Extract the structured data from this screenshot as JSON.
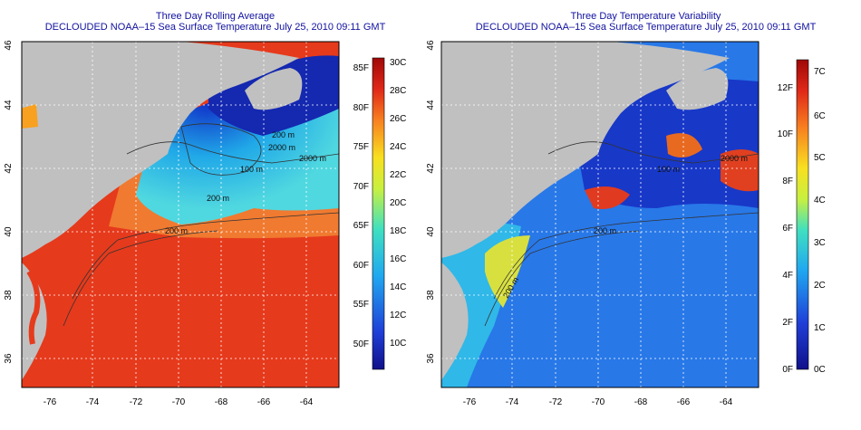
{
  "colors": {
    "title_text": "#1010a0",
    "land": "#c0c0c0",
    "axis": "#000000",
    "grid": "#ffffff"
  },
  "left_panel": {
    "title": "Three Day Rolling Average",
    "subtitle": "DECLOUDED NOAA–15 Sea Surface Temperature July 25, 2010 09:11 GMT",
    "x_ticks": [
      "-76",
      "-74",
      "-72",
      "-70",
      "-68",
      "-66",
      "-64"
    ],
    "y_ticks": [
      "36",
      "38",
      "40",
      "42",
      "44",
      "46"
    ],
    "contour_labels": [
      "200 m",
      "200 m",
      "100 m",
      "2000 m",
      "2000 m",
      "200 m"
    ],
    "colorbar_f": [
      "85F",
      "80F",
      "75F",
      "70F",
      "65F",
      "60F",
      "55F",
      "50F"
    ],
    "colorbar_c": [
      "30C",
      "28C",
      "26C",
      "24C",
      "22C",
      "20C",
      "18C",
      "16C",
      "14C",
      "12C",
      "10C"
    ]
  },
  "right_panel": {
    "title": "Three Day Temperature Variability",
    "subtitle": "DECLOUDED NOAA–15 Sea Surface Temperature July 25, 2010 09:11 GMT",
    "x_ticks": [
      "-76",
      "-74",
      "-72",
      "-70",
      "-68",
      "-66",
      "-64"
    ],
    "y_ticks": [
      "36",
      "38",
      "40",
      "42",
      "44",
      "46"
    ],
    "contour_labels": [
      "200 m",
      "100 m",
      "2000 m",
      "200 m"
    ],
    "colorbar_f": [
      "12F",
      "10F",
      "8F",
      "6F",
      "4F",
      "2F",
      "0F"
    ],
    "colorbar_c": [
      "7C",
      "6C",
      "5C",
      "4C",
      "3C",
      "2C",
      "1C",
      "0C"
    ]
  }
}
